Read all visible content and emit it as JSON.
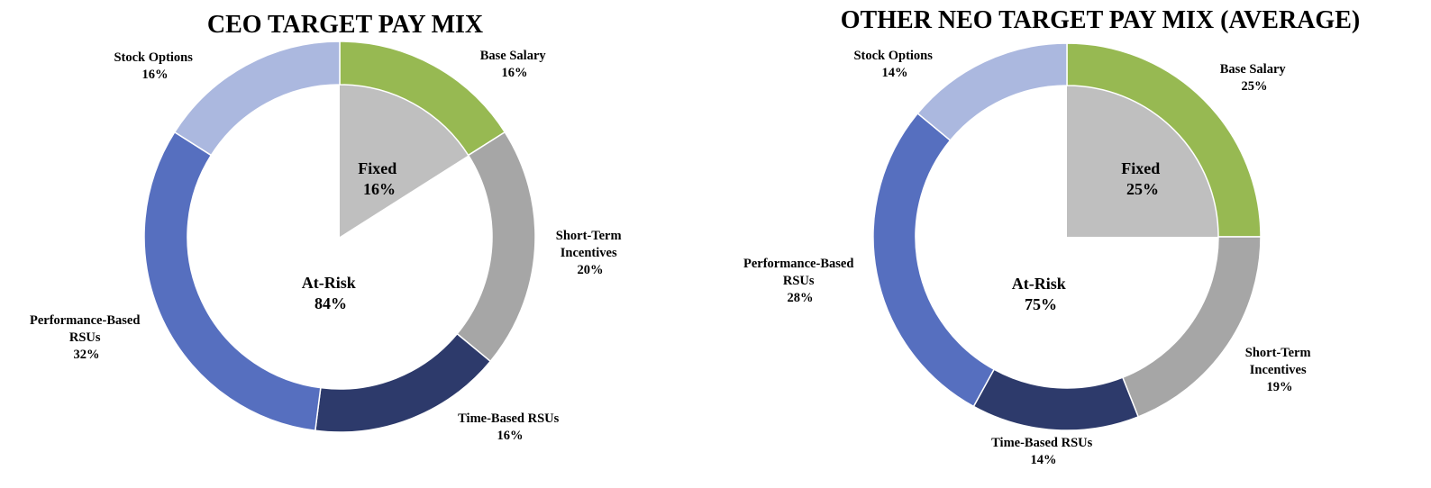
{
  "chart_data": [
    {
      "type": "pie",
      "title": "CEO TARGET PAY MIX",
      "outer_ring": [
        {
          "name": "Base Salary",
          "value": 16,
          "label": "16%",
          "color": "#97b952"
        },
        {
          "name": "Short-Term Incentives",
          "value": 20,
          "label": "20%",
          "color": "#a6a6a6"
        },
        {
          "name": "Time-Based RSUs",
          "value": 16,
          "label": "16%",
          "color": "#2d3a6b"
        },
        {
          "name": "Performance-Based RSUs",
          "value": 32,
          "label": "32%",
          "color": "#566fbf"
        },
        {
          "name": "Stock Options",
          "value": 16,
          "label": "16%",
          "color": "#abb8df"
        }
      ],
      "inner": [
        {
          "name": "Fixed",
          "value": 16,
          "label": "16%",
          "color": "#bfbfbf"
        },
        {
          "name": "At-Risk",
          "value": 84,
          "label": "84%",
          "color": "#ffffff"
        }
      ]
    },
    {
      "type": "pie",
      "title": "OTHER NEO TARGET PAY MIX (AVERAGE)",
      "outer_ring": [
        {
          "name": "Base Salary",
          "value": 25,
          "label": "25%",
          "color": "#97b952"
        },
        {
          "name": "Short-Term Incentives",
          "value": 19,
          "label": "19%",
          "color": "#a6a6a6"
        },
        {
          "name": "Time-Based RSUs",
          "value": 14,
          "label": "14%",
          "color": "#2d3a6b"
        },
        {
          "name": "Performance-Based RSUs",
          "value": 28,
          "label": "28%",
          "color": "#566fbf"
        },
        {
          "name": "Stock Options",
          "value": 14,
          "label": "14%",
          "color": "#abb8df"
        }
      ],
      "inner": [
        {
          "name": "Fixed",
          "value": 25,
          "label": "25%",
          "color": "#bfbfbf"
        },
        {
          "name": "At-Risk",
          "value": 75,
          "label": "75%",
          "color": "#ffffff"
        }
      ]
    }
  ],
  "labels": {
    "ceo": {
      "base_salary": [
        "Base Salary",
        "16%"
      ],
      "short_term": [
        "Short-Term",
        "Incentives",
        "20%"
      ],
      "time_based": [
        "Time-Based RSUs",
        "16%"
      ],
      "performance": [
        "Performance-Based",
        "RSUs",
        "32%"
      ],
      "stock_options": [
        "Stock Options",
        "16%"
      ],
      "fixed": [
        "Fixed",
        "16%"
      ],
      "at_risk": [
        "At-Risk",
        "84%"
      ]
    },
    "neo": {
      "base_salary": [
        "Base Salary",
        "25%"
      ],
      "short_term": [
        "Short-Term",
        "Incentives",
        "19%"
      ],
      "time_based": [
        "Time-Based RSUs",
        "14%"
      ],
      "performance": [
        "Performance-Based",
        "RSUs",
        "28%"
      ],
      "stock_options": [
        "Stock Options",
        "14%"
      ],
      "fixed": [
        "Fixed",
        "25%"
      ],
      "at_risk": [
        "At-Risk",
        "75%"
      ]
    }
  }
}
